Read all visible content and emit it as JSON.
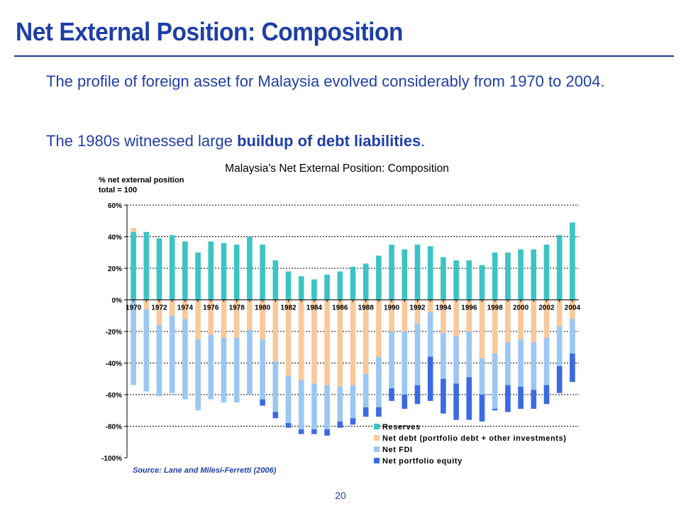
{
  "slide": {
    "title": "Net External Position: Composition",
    "bullet1": "The profile of foreign asset for Malaysia evolved considerably from 1970 to 2004.",
    "bullet2_pre": "The 1980s witnessed large ",
    "bullet2_bold": "buildup of debt liabilities",
    "bullet2_post": ".",
    "page_number": "20"
  },
  "chart_data": {
    "type": "bar",
    "stacked": true,
    "title": "Malaysia's Net External Position: Composition",
    "ylabel_line1": "% net external position",
    "ylabel_line2": "total = 100",
    "source": "Source: Lane and Milesi-Ferretti (2006)",
    "ylim": [
      -100,
      60
    ],
    "yticks": [
      60,
      40,
      20,
      0,
      -20,
      -40,
      -60,
      -80,
      -100
    ],
    "ytick_labels": [
      "60%",
      "40%",
      "20%",
      "0%",
      "-20%",
      "-40%",
      "-60%",
      "-80%",
      "-100%"
    ],
    "grid": true,
    "legend_position": "bottom-right",
    "categories": [
      "1970",
      "1971",
      "1972",
      "1973",
      "1974",
      "1975",
      "1976",
      "1977",
      "1978",
      "1979",
      "1980",
      "1981",
      "1982",
      "1983",
      "1984",
      "1985",
      "1986",
      "1987",
      "1988",
      "1989",
      "1990",
      "1991",
      "1992",
      "1993",
      "1994",
      "1995",
      "1996",
      "1997",
      "1998",
      "1999",
      "2000",
      "2001",
      "2002",
      "2003",
      "2004"
    ],
    "xtick_labels": [
      "1970",
      "1972",
      "1974",
      "1976",
      "1978",
      "1980",
      "1982",
      "1984",
      "1986",
      "1988",
      "1990",
      "1992",
      "1994",
      "1996",
      "1998",
      "2000",
      "2002",
      "2004"
    ],
    "series": [
      {
        "name": "Reserves",
        "color": "#3cc4c4",
        "values": [
          43,
          43,
          39,
          41,
          37,
          30,
          37,
          36,
          35,
          40,
          35,
          25,
          18,
          15,
          13,
          16,
          18,
          21,
          23,
          28,
          35,
          32,
          35,
          34,
          27,
          25,
          25,
          22,
          30,
          30,
          32,
          32,
          35,
          41,
          49
        ]
      },
      {
        "name": "Net debt (portfolio debt + other investments)",
        "color": "#f9c89b",
        "values": [
          2.5,
          -6,
          -16,
          -10,
          -12,
          -25,
          -22,
          -24,
          -24,
          -19,
          -25,
          -39,
          -48,
          -51,
          -53,
          -54,
          -55,
          -54,
          -47,
          -36,
          -20,
          -20,
          -15,
          -8,
          -21,
          -23,
          -20,
          -37,
          -34,
          -27,
          -25,
          -27,
          -24,
          -17,
          -12
        ]
      },
      {
        "name": "Net FDI",
        "color": "#9cc7f2",
        "values": [
          -54,
          -52,
          -45,
          -49,
          -51,
          -45,
          -41,
          -41,
          -41,
          -41,
          -38,
          -32,
          -30,
          -31,
          -29,
          -28,
          -22,
          -21,
          -21,
          -32,
          -36,
          -40,
          -39,
          -28,
          -29,
          -30,
          -29,
          -23,
          -35,
          -27,
          -30,
          -30,
          -30,
          -25,
          -22
        ]
      },
      {
        "name": "Net portfolio equity",
        "color": "#3a6be3",
        "values": [
          0,
          0,
          0,
          0,
          0,
          0,
          0,
          0,
          0,
          0,
          -4,
          -4,
          -3,
          -3,
          -3,
          -4,
          -4,
          -4,
          -6,
          -6,
          -8,
          -9,
          -12,
          -28,
          -22,
          -23,
          -27,
          -17,
          -1,
          -17,
          -14,
          -12,
          -12,
          -17,
          -18
        ]
      }
    ]
  }
}
